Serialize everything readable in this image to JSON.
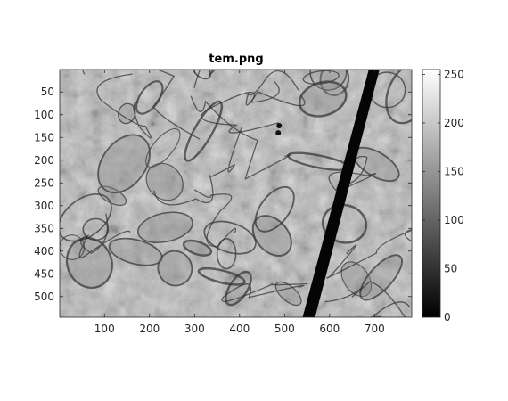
{
  "chart_data": {
    "type": "heatmap",
    "title": "tem.png",
    "xlabel": "",
    "ylabel": "",
    "xlim": [
      0.5,
      782.5
    ],
    "ylim": [
      0.5,
      545.5
    ],
    "y_direction": "reverse",
    "x_ticks": [
      100,
      200,
      300,
      400,
      500,
      600,
      700
    ],
    "y_ticks": [
      50,
      100,
      150,
      200,
      250,
      300,
      350,
      400,
      450,
      500
    ],
    "colormap": "gray",
    "colorbar": {
      "range": [
        0,
        255
      ],
      "ticks": [
        0,
        50,
        100,
        150,
        200,
        250
      ]
    },
    "image_description_free": true,
    "dark_band": {
      "top_x": 700,
      "top_y": 0,
      "bottom_x": 553,
      "bottom_y": 545,
      "intensity": 0
    },
    "background_intensity": 185
  }
}
